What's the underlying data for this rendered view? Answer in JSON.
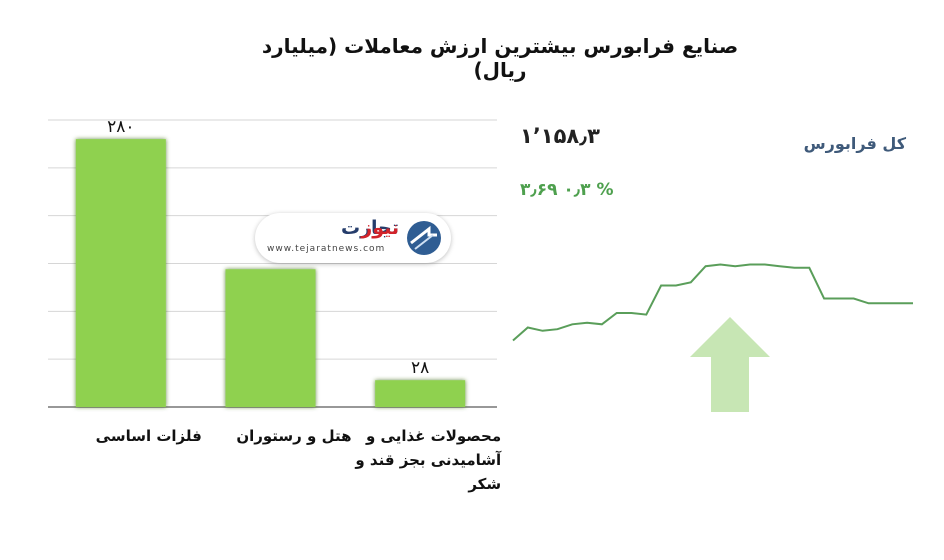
{
  "title": "صنایع فرابورس بیشترین ارزش معاملات  (میلیارد ریال)",
  "chart_data": {
    "type": "bar",
    "categories": [
      "فلزات اساسی",
      "هتل و رستوران",
      "محصولات غذایی و آشامیدنی بجز قند و شکر"
    ],
    "category_lines": [
      [
        "فلزات اساسی"
      ],
      [
        "هتل و رستوران"
      ],
      [
        "محصولات غذایی و",
        "آشامیدنی بجز قند و",
        "شکر"
      ]
    ],
    "values": [
      280,
      144,
      28
    ],
    "value_labels": [
      "۲۸۰",
      "",
      "۲۸"
    ],
    "ylim": [
      0,
      300
    ],
    "grid": true,
    "bar_color": "#8fd14f"
  },
  "logo": {
    "name_part_1": "تجارت",
    "name_part_2": "نیوز",
    "url": "www.tejaratnews.com"
  },
  "index_panel": {
    "name": "کل فرابورس",
    "value": "۱٬۱۵۸٫۳",
    "change": "۳٫۶۹   ۰٫۳ %",
    "trend": "up",
    "line_color": "#5a9e5a",
    "arrow_color": "#c7e6b4",
    "sparkline": [
      1114,
      1122,
      1120,
      1121,
      1124,
      1125,
      1124,
      1131,
      1131,
      1130,
      1148,
      1148,
      1150,
      1160,
      1161,
      1160,
      1161,
      1161,
      1160,
      1159,
      1159,
      1140,
      1140,
      1140,
      1137,
      1137,
      1137,
      1137
    ]
  }
}
